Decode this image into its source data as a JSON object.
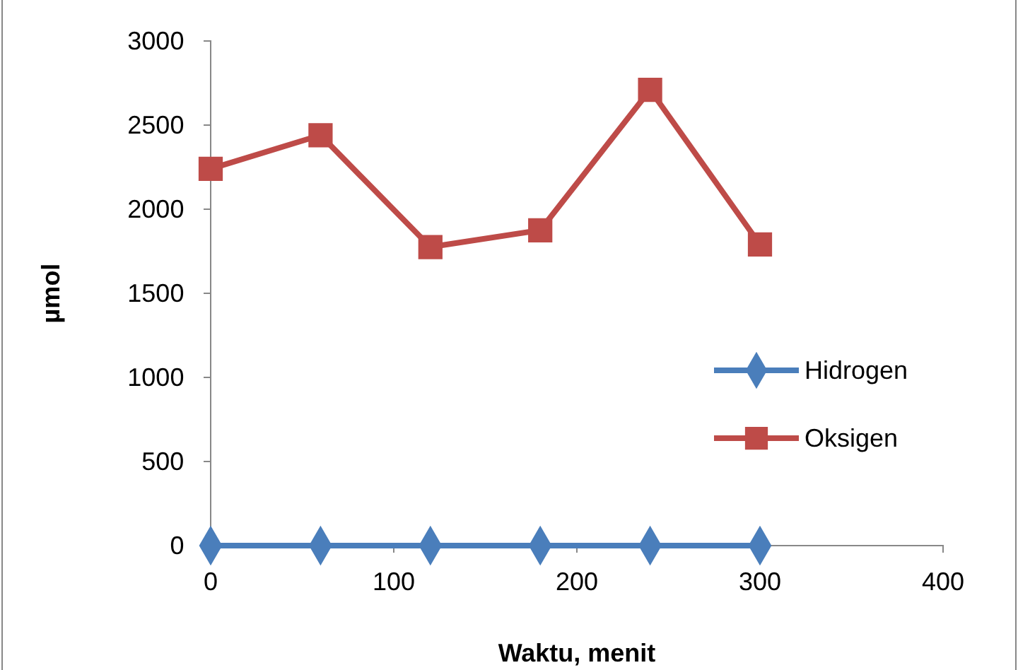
{
  "chart_data": {
    "type": "line",
    "xlabel": "Waktu, menit",
    "ylabel": "µmol",
    "x": [
      0,
      60,
      120,
      180,
      240,
      300
    ],
    "series": [
      {
        "name": "Hidrogen",
        "color": "#4a7ebb",
        "marker": "diamond",
        "values": [
          0,
          0,
          0,
          0,
          0,
          0
        ]
      },
      {
        "name": "Oksigen",
        "color": "#be4b48",
        "marker": "square",
        "values": [
          2240,
          2440,
          1775,
          1875,
          2710,
          1790
        ]
      }
    ],
    "xlim": [
      0,
      400
    ],
    "xticks": [
      0,
      100,
      200,
      300,
      400
    ],
    "ylim": [
      0,
      3000
    ],
    "yticks": [
      0,
      500,
      1000,
      1500,
      2000,
      2500,
      3000
    ],
    "grid": false,
    "legend": "right",
    "line_style": "solid"
  }
}
